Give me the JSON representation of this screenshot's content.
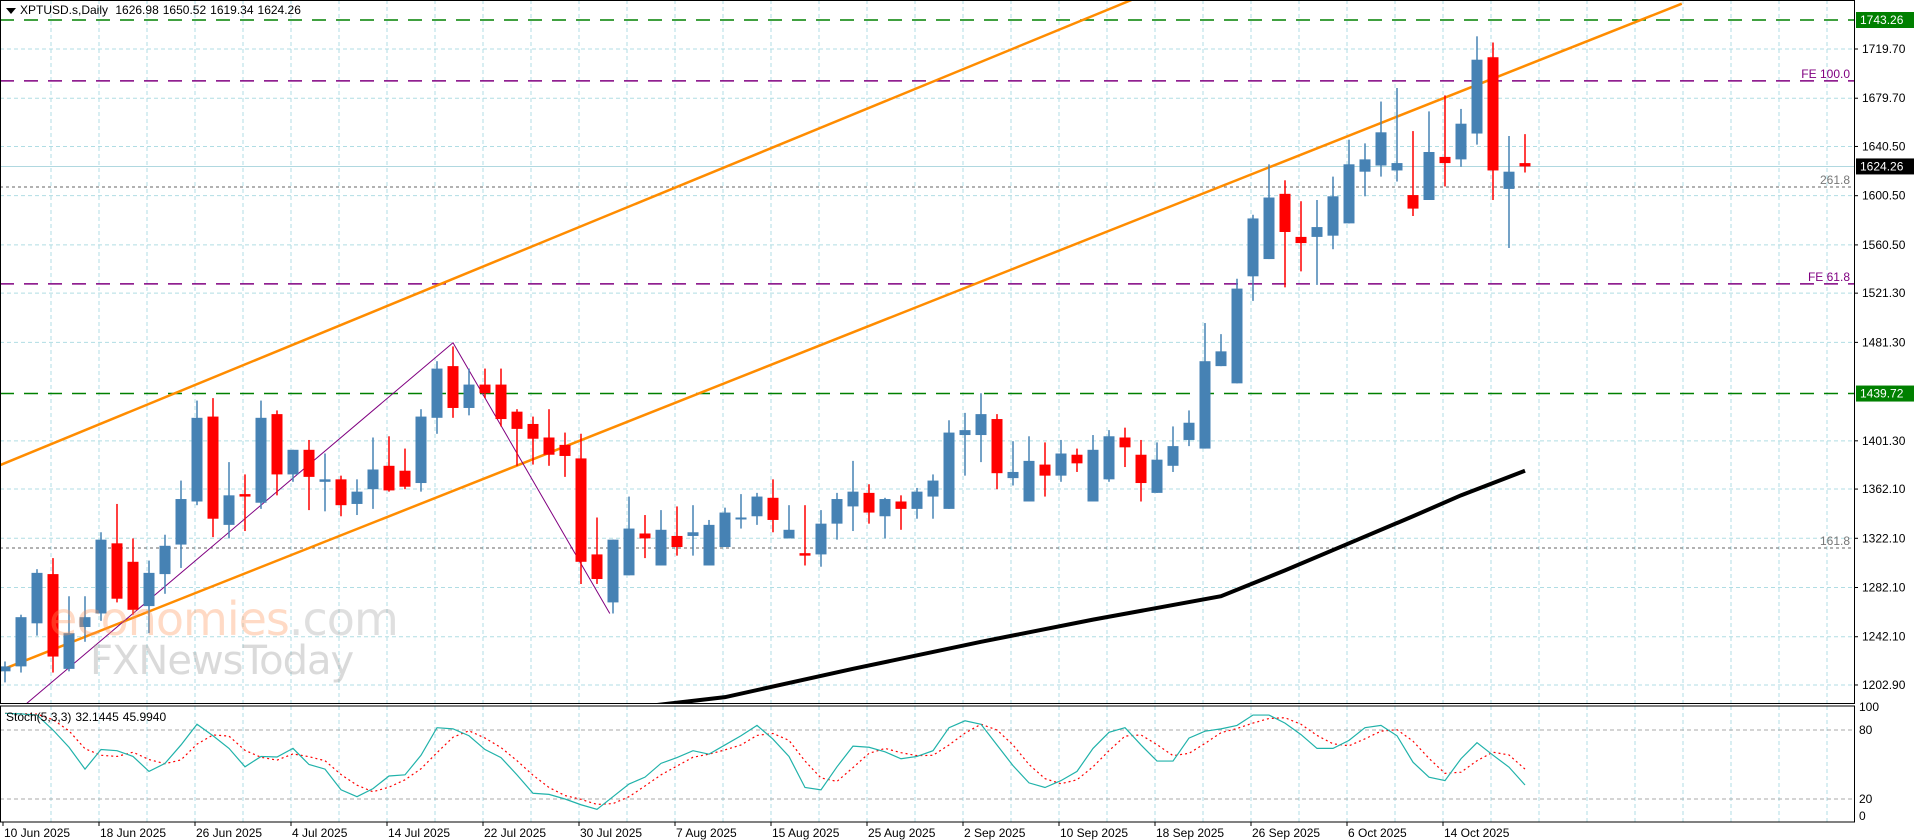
{
  "header": {
    "symbol": "XPTUSD.s,Daily",
    "open": "1626.98",
    "high": "1650.52",
    "low": "1619.34",
    "close": "1624.26"
  },
  "stoch_label": {
    "name": "Stoch(5,3,3)",
    "k": "32.1445",
    "d": "45.9940"
  },
  "watermark": {
    "brand": "economies",
    "domain": ".com",
    "sub": "FXNewsToday"
  },
  "colors": {
    "bull": "#4682B4",
    "bear": "#FF0000",
    "channel": "#FF8C00",
    "level": "#008000",
    "fe": "#800080",
    "ma": "#000000",
    "stoch_k": "#20B2AA",
    "stoch_d": "#FF0000",
    "grid": "#B0DDE4"
  },
  "chart_data": {
    "type": "bar",
    "style": "candlestick",
    "title": "XPTUSD.s,Daily",
    "ylim": [
      1180,
      1766
    ],
    "price_ticks": [
      "1719.70",
      "1679.70",
      "1640.50",
      "1600.50",
      "1560.50",
      "1521.30",
      "1481.30",
      "1401.30",
      "1362.10",
      "1322.10",
      "1282.10",
      "1242.10",
      "1202.90"
    ],
    "price_tags": [
      {
        "label": "1743.26",
        "value": 1743.26,
        "kind": "level"
      },
      {
        "label": "1624.26",
        "value": 1624.26,
        "kind": "current"
      },
      {
        "label": "1439.72",
        "value": 1439.72,
        "kind": "level"
      }
    ],
    "date_labels": [
      {
        "bar": 0,
        "label": "10 Jun 2025"
      },
      {
        "bar": 6,
        "label": "18 Jun 2025"
      },
      {
        "bar": 12,
        "label": "26 Jun 2025"
      },
      {
        "bar": 18,
        "label": "4 Jul 2025"
      },
      {
        "bar": 24,
        "label": "14 Jul 2025"
      },
      {
        "bar": 30,
        "label": "22 Jul 2025"
      },
      {
        "bar": 36,
        "label": "30 Jul 2025"
      },
      {
        "bar": 42,
        "label": "7 Aug 2025"
      },
      {
        "bar": 48,
        "label": "15 Aug 2025"
      },
      {
        "bar": 54,
        "label": "25 Aug 2025"
      },
      {
        "bar": 60,
        "label": "2 Sep 2025"
      },
      {
        "bar": 66,
        "label": "10 Sep 2025"
      },
      {
        "bar": 72,
        "label": "18 Sep 2025"
      },
      {
        "bar": 78,
        "label": "26 Sep 2025"
      },
      {
        "bar": 84,
        "label": "6 Oct 2025"
      },
      {
        "bar": 90,
        "label": "14 Oct 2025"
      }
    ],
    "ohlc": [
      [
        1214,
        1222,
        1205,
        1218
      ],
      [
        1218,
        1260,
        1213,
        1258
      ],
      [
        1253,
        1297,
        1243,
        1294
      ],
      [
        1293,
        1306,
        1213,
        1226
      ],
      [
        1216,
        1275,
        1214,
        1245
      ],
      [
        1250,
        1275,
        1238,
        1258
      ],
      [
        1261,
        1327,
        1255,
        1321
      ],
      [
        1318,
        1350,
        1270,
        1273
      ],
      [
        1303,
        1322,
        1260,
        1264
      ],
      [
        1267,
        1304,
        1245,
        1294
      ],
      [
        1293,
        1325,
        1277,
        1316
      ],
      [
        1317,
        1369,
        1298,
        1354
      ],
      [
        1352,
        1434,
        1349,
        1420
      ],
      [
        1421,
        1436,
        1323,
        1338
      ],
      [
        1333,
        1384,
        1322,
        1357
      ],
      [
        1358,
        1374,
        1328,
        1356
      ],
      [
        1351,
        1434,
        1346,
        1420
      ],
      [
        1423,
        1426,
        1357,
        1374
      ],
      [
        1374,
        1394,
        1368,
        1394
      ],
      [
        1394,
        1402,
        1345,
        1372
      ],
      [
        1368,
        1391,
        1344,
        1370
      ],
      [
        1370,
        1373,
        1340,
        1349
      ],
      [
        1350,
        1370,
        1341,
        1360
      ],
      [
        1362,
        1404,
        1346,
        1378
      ],
      [
        1381,
        1405,
        1360,
        1361
      ],
      [
        1377,
        1395,
        1362,
        1364
      ],
      [
        1367,
        1427,
        1360,
        1421
      ],
      [
        1420,
        1466,
        1407,
        1460
      ],
      [
        1462,
        1478,
        1420,
        1428
      ],
      [
        1428,
        1460,
        1422,
        1447
      ],
      [
        1447,
        1460,
        1436,
        1440
      ],
      [
        1447,
        1460,
        1413,
        1419
      ],
      [
        1425,
        1427,
        1381,
        1411
      ],
      [
        1415,
        1421,
        1382,
        1403
      ],
      [
        1404,
        1427,
        1381,
        1390
      ],
      [
        1398,
        1408,
        1372,
        1389
      ],
      [
        1387,
        1407,
        1285,
        1303
      ],
      [
        1309,
        1339,
        1285,
        1289
      ],
      [
        1270,
        1321,
        1261,
        1321
      ],
      [
        1292,
        1356,
        1292,
        1330
      ],
      [
        1326,
        1341,
        1306,
        1322
      ],
      [
        1300,
        1345,
        1300,
        1329
      ],
      [
        1324,
        1348,
        1308,
        1315
      ],
      [
        1324,
        1349,
        1308,
        1327
      ],
      [
        1300,
        1337,
        1300,
        1333
      ],
      [
        1315,
        1347,
        1315,
        1343
      ],
      [
        1338,
        1358,
        1330,
        1339
      ],
      [
        1340,
        1359,
        1333,
        1356
      ],
      [
        1355,
        1370,
        1327,
        1337
      ],
      [
        1322,
        1349,
        1322,
        1329
      ],
      [
        1310,
        1349,
        1300,
        1308
      ],
      [
        1309,
        1345,
        1299,
        1334
      ],
      [
        1334,
        1359,
        1321,
        1354
      ],
      [
        1348,
        1385,
        1328,
        1360
      ],
      [
        1359,
        1366,
        1334,
        1343
      ],
      [
        1340,
        1355,
        1322,
        1354
      ],
      [
        1352,
        1357,
        1329,
        1346
      ],
      [
        1346,
        1363,
        1338,
        1360
      ],
      [
        1356,
        1374,
        1338,
        1369
      ],
      [
        1346,
        1418,
        1346,
        1408
      ],
      [
        1406,
        1424,
        1373,
        1410
      ],
      [
        1406,
        1440,
        1384,
        1423
      ],
      [
        1419,
        1423,
        1362,
        1375
      ],
      [
        1371,
        1401,
        1365,
        1376
      ],
      [
        1352,
        1405,
        1352,
        1385
      ],
      [
        1382,
        1400,
        1356,
        1373
      ],
      [
        1373,
        1402,
        1368,
        1391
      ],
      [
        1390,
        1395,
        1376,
        1383
      ],
      [
        1352,
        1406,
        1352,
        1394
      ],
      [
        1370,
        1410,
        1368,
        1405
      ],
      [
        1404,
        1412,
        1380,
        1396
      ],
      [
        1390,
        1402,
        1352,
        1367
      ],
      [
        1359,
        1400,
        1359,
        1386
      ],
      [
        1381,
        1413,
        1376,
        1397
      ],
      [
        1402,
        1426,
        1397,
        1416
      ],
      [
        1395,
        1497,
        1395,
        1466
      ],
      [
        1462,
        1488,
        1462,
        1474
      ],
      [
        1448,
        1533,
        1448,
        1525
      ],
      [
        1535,
        1585,
        1515,
        1582
      ],
      [
        1549,
        1626,
        1549,
        1599
      ],
      [
        1602,
        1613,
        1526,
        1571
      ],
      [
        1567,
        1596,
        1539,
        1562
      ],
      [
        1567,
        1597,
        1528,
        1575
      ],
      [
        1568,
        1616,
        1557,
        1600
      ],
      [
        1578,
        1646,
        1578,
        1626
      ],
      [
        1620,
        1643,
        1600,
        1630
      ],
      [
        1625,
        1677,
        1616,
        1652
      ],
      [
        1621,
        1688,
        1612,
        1627
      ],
      [
        1601,
        1653,
        1584,
        1590
      ],
      [
        1597,
        1669,
        1597,
        1636
      ],
      [
        1632,
        1682,
        1608,
        1627
      ],
      [
        1630,
        1671,
        1624,
        1659
      ],
      [
        1651,
        1730,
        1642,
        1711
      ],
      [
        1713,
        1725,
        1597,
        1621
      ],
      [
        1606,
        1649,
        1558,
        1620
      ],
      [
        1626.98,
        1650.52,
        1619.34,
        1624.26
      ]
    ],
    "horizontal_levels": [
      {
        "value": 1743.26,
        "kind": "level"
      },
      {
        "value": 1439.72,
        "kind": "level"
      }
    ],
    "fib_levels": [
      {
        "label": "FE 100.0",
        "value": 1693.8,
        "kind": "fe"
      },
      {
        "label": "FE 61.8",
        "value": 1528.8,
        "kind": "fe"
      },
      {
        "label": "261.8",
        "value": 1607.6,
        "kind": "fib"
      },
      {
        "label": "161.8",
        "value": 1314.2,
        "kind": "fib"
      }
    ],
    "current_price": 1624.26,
    "channel_lines": [
      [
        [
          -0.3,
          1381.6
        ],
        [
          70.4,
          1759.5
        ]
      ],
      [
        [
          -0.3,
          1214.7
        ],
        [
          104.8,
          1756.5
        ]
      ]
    ],
    "zigzag": [
      [
        -3,
        1140
      ],
      [
        28,
        1481
      ],
      [
        37.8,
        1261
      ]
    ],
    "moving_average": [
      [
        36,
        1176
      ],
      [
        39,
        1184
      ],
      [
        45,
        1193
      ],
      [
        53,
        1216
      ],
      [
        61,
        1238
      ],
      [
        68,
        1256
      ],
      [
        76,
        1275
      ],
      [
        80,
        1296
      ],
      [
        84,
        1318
      ],
      [
        88,
        1340
      ],
      [
        91,
        1357
      ],
      [
        95,
        1377
      ]
    ],
    "stochastic": {
      "ylim": [
        0,
        100
      ],
      "ticks": [
        "100",
        "80",
        "20",
        "0"
      ],
      "levels": [
        80,
        20
      ],
      "k": [
        94.5,
        94,
        93,
        80,
        65,
        46,
        63,
        62,
        57,
        44,
        51,
        67,
        85,
        75,
        64,
        48,
        57,
        56.5,
        64,
        50,
        46,
        28,
        22,
        29,
        40,
        41,
        58,
        82,
        81,
        75,
        63,
        56,
        41,
        25,
        24,
        20,
        15,
        11,
        22,
        33,
        39,
        51,
        56,
        62,
        59,
        67,
        75,
        84,
        72,
        57,
        30,
        28,
        48,
        66,
        65,
        61,
        55,
        57,
        62,
        82,
        88,
        85,
        67,
        49,
        34,
        30,
        36,
        44,
        64,
        78,
        82,
        67,
        53,
        53,
        73,
        79,
        81,
        84,
        93,
        93,
        86,
        76,
        64,
        64,
        71,
        82,
        84,
        75,
        52,
        39,
        36,
        55,
        69,
        58.1,
        47.7,
        32.1445
      ],
      "d": [
        94.5,
        94.3,
        93.8,
        89,
        79.3,
        63.7,
        58,
        57,
        60.7,
        54.3,
        50.7,
        54,
        67.7,
        75.7,
        74.7,
        62.3,
        56.3,
        53.8,
        59.2,
        56.8,
        53.3,
        41.3,
        32,
        26.3,
        30.3,
        36.7,
        46.3,
        60.3,
        73.7,
        79.3,
        73,
        64.7,
        53.3,
        40.7,
        30,
        23,
        19.7,
        15.3,
        16,
        22,
        31.3,
        41,
        48.7,
        56.3,
        59,
        62.7,
        67,
        75.3,
        77,
        71,
        53,
        38.3,
        35.3,
        47.3,
        59.7,
        64,
        60.3,
        57.7,
        58,
        67,
        77.3,
        85,
        80,
        67,
        50,
        37.7,
        33.3,
        36.7,
        48,
        62,
        74.7,
        75.7,
        67.3,
        57.7,
        59.7,
        68.3,
        77.7,
        81.3,
        86,
        90,
        90.7,
        85,
        75.3,
        68,
        66.3,
        72.3,
        79,
        80.3,
        70.3,
        55.3,
        42.3,
        43.3,
        53.3,
        60.7,
        58.3,
        45.994
      ]
    }
  }
}
